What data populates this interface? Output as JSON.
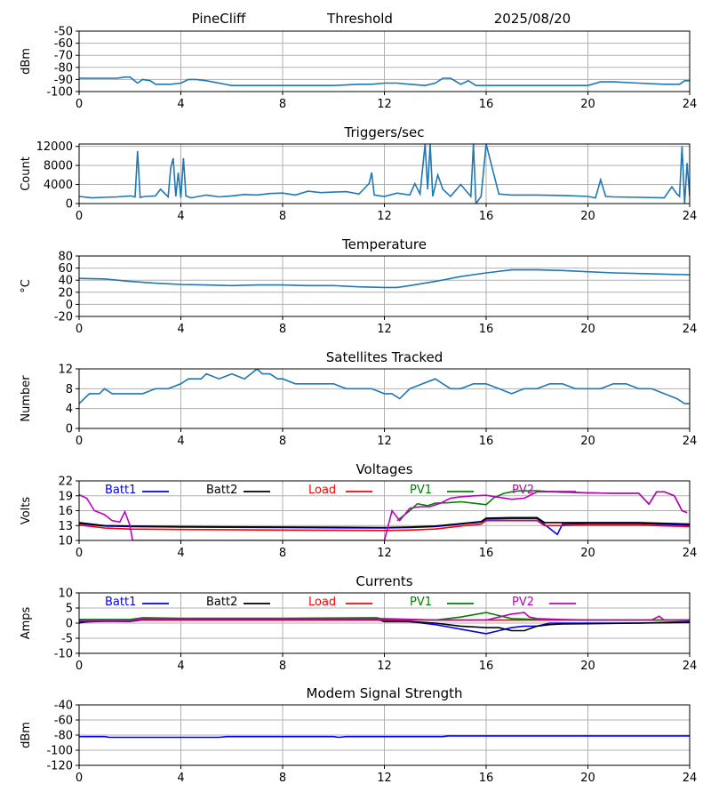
{
  "header": {
    "station": "PineCliff",
    "mode": "Threshold",
    "date": "2025/08/20"
  },
  "colors": {
    "series": "#1f77b4",
    "batt1": "#0000ff",
    "batt2": "#000000",
    "load": "#ff0000",
    "pv1": "#008000",
    "pv2": "#bf00bf",
    "modem": "#0000ff",
    "grid": "#b0b0b0"
  },
  "x_axis": {
    "range": [
      0,
      24
    ],
    "ticks": [
      0,
      4,
      8,
      12,
      16,
      20,
      24
    ]
  },
  "legend_labels": [
    "Batt1",
    "Batt2",
    "Load",
    "PV1",
    "PV2"
  ],
  "chart_data": [
    {
      "type": "line",
      "id": "signal",
      "title": "",
      "ylabel": "dBm",
      "ylim": [
        -100,
        -50
      ],
      "yticks": [
        -50,
        -60,
        -70,
        -80,
        -90,
        -100
      ],
      "series": [
        {
          "color_key": "series",
          "x": [
            0,
            0.5,
            1,
            1.5,
            1.8,
            2,
            2.3,
            2.5,
            2.8,
            3,
            3.3,
            3.6,
            4,
            4.3,
            4.6,
            5,
            6,
            7,
            8,
            9,
            10,
            11,
            11.5,
            12,
            12.5,
            13,
            13.6,
            14,
            14.3,
            14.6,
            15,
            15.3,
            15.6,
            16,
            17,
            18,
            19,
            20,
            20.5,
            21,
            22,
            23,
            23.6,
            23.8,
            24
          ],
          "y": [
            -89,
            -89,
            -89,
            -89,
            -88,
            -88,
            -93,
            -90,
            -91,
            -94,
            -94,
            -94,
            -93,
            -90,
            -90,
            -91,
            -95,
            -95,
            -95,
            -95,
            -95,
            -94,
            -94,
            -93,
            -93,
            -94,
            -95,
            -93,
            -89,
            -89,
            -94,
            -91,
            -95,
            -95,
            -95,
            -95,
            -95,
            -95,
            -92,
            -92,
            -93,
            -94,
            -94,
            -91,
            -91
          ]
        }
      ]
    },
    {
      "type": "line",
      "id": "triggers",
      "title": "Triggers/sec",
      "ylabel": "Count",
      "ylim": [
        0,
        12500
      ],
      "yticks": [
        0,
        4000,
        8000,
        12000
      ],
      "series": [
        {
          "color_key": "series",
          "x": [
            0,
            0.5,
            1,
            1.5,
            2,
            2.2,
            2.3,
            2.4,
            2.6,
            3,
            3.2,
            3.5,
            3.6,
            3.7,
            3.8,
            3.9,
            4,
            4.1,
            4.2,
            4.4,
            5,
            5.5,
            6,
            6.5,
            7,
            7.5,
            8,
            8.5,
            9,
            9.5,
            10,
            10.5,
            11,
            11.4,
            11.5,
            11.6,
            12,
            12.5,
            13,
            13.2,
            13.4,
            13.6,
            13.7,
            13.8,
            13.9,
            14.1,
            14.3,
            14.6,
            15,
            15.4,
            15.5,
            15.6,
            15.8,
            16,
            16.5,
            17,
            18,
            19,
            20,
            20.3,
            20.5,
            20.7,
            21,
            22,
            23,
            23.3,
            23.5,
            23.6,
            23.7,
            23.8,
            23.9,
            24
          ],
          "y": [
            1500,
            1200,
            1300,
            1400,
            1600,
            1400,
            11000,
            1300,
            1500,
            1600,
            3000,
            1400,
            7500,
            9500,
            1500,
            6500,
            1200,
            9500,
            1600,
            1200,
            1800,
            1400,
            1600,
            1900,
            1800,
            2100,
            2200,
            1800,
            2600,
            2300,
            2400,
            2500,
            2000,
            4200,
            6500,
            1800,
            1500,
            2200,
            1800,
            4200,
            2000,
            12500,
            3000,
            12500,
            1500,
            6000,
            3000,
            1500,
            4000,
            1500,
            12500,
            0,
            1500,
            12500,
            2000,
            1800,
            1800,
            1700,
            1500,
            1200,
            5000,
            1500,
            1400,
            1300,
            1200,
            3500,
            2000,
            1500,
            12000,
            0,
            8500,
            1500
          ]
        }
      ]
    },
    {
      "type": "line",
      "id": "temperature",
      "title": "Temperature",
      "ylabel": "°C",
      "ylim": [
        -20,
        80
      ],
      "yticks": [
        -20,
        0,
        20,
        40,
        60,
        80
      ],
      "series": [
        {
          "color_key": "series",
          "x": [
            0,
            1,
            2,
            3,
            4,
            5,
            6,
            7,
            8,
            9,
            10,
            11,
            12,
            12.5,
            13,
            14,
            15,
            16,
            17,
            18,
            19,
            20,
            21,
            22,
            23,
            24
          ],
          "y": [
            43,
            42,
            38,
            35,
            33,
            32,
            31,
            32,
            32,
            31,
            31,
            29,
            28,
            28,
            31,
            38,
            46,
            52,
            57,
            57,
            56,
            54,
            52,
            51,
            50,
            49
          ]
        }
      ]
    },
    {
      "type": "line",
      "id": "satellites",
      "title": "Satellites Tracked",
      "ylabel": "Number",
      "ylim": [
        0,
        12
      ],
      "yticks": [
        0,
        4,
        8,
        12
      ],
      "series": [
        {
          "color_key": "series",
          "x": [
            0,
            0.2,
            0.4,
            0.8,
            1,
            1.3,
            1.8,
            2,
            2.5,
            3,
            3.5,
            4,
            4.3,
            4.8,
            5,
            5.5,
            6,
            6.5,
            7,
            7.2,
            7.5,
            7.8,
            8,
            8.5,
            9,
            9.5,
            10,
            10.5,
            11,
            11.5,
            12,
            12.3,
            12.6,
            13,
            13.5,
            14,
            14.3,
            14.6,
            15,
            15.5,
            16,
            16.5,
            17,
            17.5,
            18,
            18.5,
            19,
            19.5,
            20,
            20.5,
            21,
            21.5,
            22,
            22.5,
            23,
            23.5,
            23.8,
            24
          ],
          "y": [
            5,
            6,
            7,
            7,
            8,
            7,
            7,
            7,
            7,
            8,
            8,
            9,
            10,
            10,
            11,
            10,
            11,
            10,
            12,
            11,
            11,
            10,
            10,
            9,
            9,
            9,
            9,
            8,
            8,
            8,
            7,
            7,
            6,
            8,
            9,
            10,
            9,
            8,
            8,
            9,
            9,
            8,
            7,
            8,
            8,
            9,
            9,
            8,
            8,
            8,
            9,
            9,
            8,
            8,
            7,
            6,
            5,
            5
          ]
        }
      ]
    },
    {
      "type": "line",
      "id": "voltages",
      "title": "Voltages",
      "ylabel": "Volts",
      "ylim": [
        10,
        22
      ],
      "yticks": [
        10,
        13,
        16,
        19,
        22
      ],
      "legend": "top",
      "series": [
        {
          "name": "Batt1",
          "color_key": "batt1",
          "x": [
            0,
            1,
            2,
            4,
            8,
            12,
            13,
            14,
            15,
            15.8,
            16,
            17,
            18,
            18.3,
            18.8,
            19,
            20,
            22,
            24
          ],
          "y": [
            13.4,
            12.9,
            12.8,
            12.7,
            12.6,
            12.5,
            12.6,
            12.8,
            13.3,
            13.7,
            14.3,
            14.4,
            14.4,
            13.2,
            11.2,
            13.3,
            13.4,
            13.4,
            13.1
          ]
        },
        {
          "name": "Batt2",
          "color_key": "batt2",
          "x": [
            0,
            1,
            2,
            4,
            8,
            12,
            13,
            14,
            15,
            15.8,
            16,
            17,
            18,
            18.3,
            19,
            20,
            22,
            24
          ],
          "y": [
            13.6,
            13.0,
            12.9,
            12.8,
            12.7,
            12.6,
            12.7,
            12.9,
            13.4,
            13.8,
            14.5,
            14.6,
            14.6,
            13.6,
            13.6,
            13.6,
            13.6,
            13.3
          ]
        },
        {
          "name": "Load",
          "color_key": "load",
          "x": [
            0,
            1,
            2,
            4,
            8,
            12,
            13,
            14,
            15,
            15.8,
            16,
            17,
            18,
            18.3,
            19,
            20,
            22,
            24
          ],
          "y": [
            13.1,
            12.5,
            12.3,
            12.2,
            12.1,
            12.0,
            12.1,
            12.3,
            12.9,
            13.3,
            14.0,
            14.0,
            14.0,
            13.0,
            13.0,
            13.1,
            13.1,
            12.8
          ]
        },
        {
          "name": "PV1",
          "color_key": "pv1",
          "x": [
            12.5,
            13,
            13.3,
            13.7,
            14,
            14.5,
            15,
            15.5,
            16,
            16.3,
            16.7,
            17,
            17.3,
            18,
            19,
            20,
            21,
            22,
            22.4,
            22.7,
            23,
            23.4,
            23.7,
            23.9
          ],
          "y": [
            14.0,
            16.0,
            17.4,
            17.0,
            17.5,
            17.6,
            17.8,
            17.5,
            17.2,
            18.6,
            19.5,
            19.8,
            20.0,
            20.0,
            19.7,
            19.6,
            19.5,
            19.5,
            17.3,
            19.8,
            19.8,
            19.0,
            16.0,
            15.6
          ]
        },
        {
          "name": "PV2",
          "color_key": "pv2",
          "x": [
            0,
            0.3,
            0.6,
            1,
            1.3,
            1.6,
            1.8,
            2.0,
            2.1,
            12,
            12.3,
            12.6,
            13,
            13.4,
            13.8,
            14.2,
            14.6,
            15,
            15.5,
            16,
            16.5,
            17,
            17.5,
            18,
            18.5,
            19,
            20,
            21,
            22,
            22.4,
            22.7,
            23,
            23.4,
            23.7,
            23.9
          ],
          "y": [
            19.2,
            18.5,
            16.0,
            15.2,
            14.0,
            13.7,
            15.8,
            13.0,
            10.0,
            10.0,
            16.0,
            14.0,
            16.5,
            16.8,
            16.8,
            17.5,
            18.5,
            18.8,
            19.0,
            19.1,
            18.7,
            18.3,
            18.5,
            19.8,
            19.8,
            19.8,
            19.6,
            19.5,
            19.5,
            17.3,
            19.8,
            19.8,
            19.0,
            16.0,
            15.6
          ]
        }
      ]
    },
    {
      "type": "line",
      "id": "currents",
      "title": "Currents",
      "ylabel": "Amps",
      "ylim": [
        -10,
        10
      ],
      "yticks": [
        -10,
        -5,
        0,
        5,
        10
      ],
      "legend": "top",
      "series": [
        {
          "name": "Batt1",
          "color_key": "batt1",
          "x": [
            0,
            0.5,
            1,
            2,
            2.5,
            4,
            8,
            11.8,
            12,
            13,
            14,
            15,
            16,
            16.5,
            17,
            17.5,
            18,
            18.5,
            19,
            20,
            22,
            24
          ],
          "y": [
            0.0,
            0.8,
            0.7,
            0.6,
            1.0,
            1.0,
            1.0,
            1.0,
            0.5,
            0.5,
            -0.5,
            -2.0,
            -3.5,
            -2.5,
            -1.5,
            -1.0,
            -1.0,
            0.0,
            0.0,
            0.0,
            0.0,
            0.5
          ]
        },
        {
          "name": "Batt2",
          "color_key": "batt2",
          "x": [
            0,
            0.5,
            1,
            2,
            2.5,
            4,
            8,
            11.8,
            12,
            13,
            14,
            15,
            16,
            16.5,
            17,
            17.5,
            18,
            18.5,
            19,
            20,
            22,
            24
          ],
          "y": [
            0.3,
            0.5,
            0.6,
            0.6,
            1.2,
            1.2,
            1.2,
            1.2,
            0.6,
            0.5,
            0.0,
            -1.0,
            -1.5,
            -1.5,
            -2.5,
            -2.5,
            -1.0,
            -0.5,
            -0.3,
            -0.2,
            0.0,
            0.2
          ]
        },
        {
          "name": "Load",
          "color_key": "load",
          "x": [
            0,
            2,
            4,
            8,
            12,
            14,
            16,
            18,
            20,
            22,
            24
          ],
          "y": [
            1.0,
            1.0,
            1.0,
            1.0,
            1.0,
            1.0,
            1.0,
            1.0,
            1.0,
            1.0,
            1.0
          ]
        },
        {
          "name": "PV1",
          "color_key": "pv1",
          "x": [
            0,
            2,
            2.5,
            4,
            8,
            11.7,
            12,
            12.5,
            14,
            15,
            16,
            16.5,
            17,
            18,
            20,
            22,
            24
          ],
          "y": [
            1.2,
            1.2,
            1.8,
            1.6,
            1.6,
            1.8,
            1.2,
            1.2,
            1.0,
            2.0,
            3.5,
            2.5,
            1.5,
            1.2,
            1.0,
            1.0,
            1.0
          ]
        },
        {
          "name": "PV2",
          "color_key": "pv2",
          "x": [
            0,
            2,
            2.5,
            4,
            8,
            12,
            14,
            16,
            16.5,
            17,
            17.5,
            17.7,
            18,
            19,
            20,
            22,
            22.5,
            22.8,
            23,
            24
          ],
          "y": [
            0.8,
            0.8,
            1.5,
            1.5,
            1.5,
            1.5,
            1.0,
            1.0,
            2.0,
            3.0,
            3.5,
            2.0,
            1.5,
            1.2,
            1.0,
            1.0,
            1.0,
            2.3,
            1.0,
            1.0
          ]
        }
      ]
    },
    {
      "type": "line",
      "id": "modem",
      "title": "Modem Signal Strength",
      "ylabel": "dBm",
      "ylim": [
        -120,
        -40
      ],
      "yticks": [
        -40,
        -60,
        -80,
        -100,
        -120
      ],
      "series": [
        {
          "color_key": "modem",
          "x": [
            0,
            1,
            1.2,
            5.5,
            5.8,
            10,
            10.2,
            10.5,
            14.3,
            14.5,
            24
          ],
          "y": [
            -82,
            -82,
            -83,
            -83,
            -82,
            -82,
            -83,
            -82,
            -82,
            -81,
            -81
          ]
        }
      ]
    }
  ]
}
